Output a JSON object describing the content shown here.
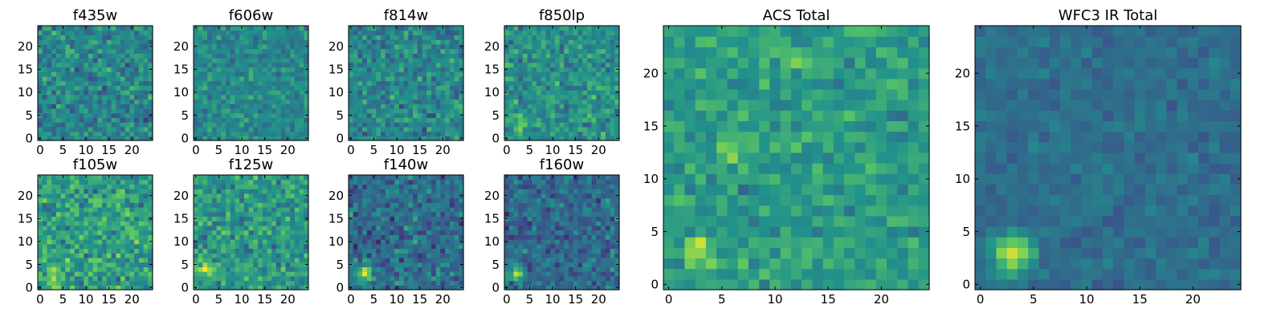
{
  "figure": {
    "colormap": "viridis",
    "colormap_stops": [
      "#440154",
      "#3b528b",
      "#21918c",
      "#5ec962",
      "#fde725"
    ]
  },
  "chart_data": [
    {
      "id": "f435w",
      "type": "heatmap",
      "title": "f435w",
      "grid_size": 25,
      "x_ticks": [
        "0",
        "5",
        "10",
        "15",
        "20"
      ],
      "y_ticks": [
        "0",
        "5",
        "10",
        "15",
        "20"
      ],
      "seed": 11,
      "base": 0.46,
      "noise": 0.13,
      "blobs": []
    },
    {
      "id": "f606w",
      "type": "heatmap",
      "title": "f606w",
      "grid_size": 25,
      "x_ticks": [
        "0",
        "5",
        "10",
        "15",
        "20"
      ],
      "y_ticks": [
        "0",
        "5",
        "10",
        "15",
        "20"
      ],
      "seed": 23,
      "base": 0.47,
      "noise": 0.1,
      "blobs": []
    },
    {
      "id": "f814w",
      "type": "heatmap",
      "title": "f814w",
      "grid_size": 25,
      "x_ticks": [
        "0",
        "5",
        "10",
        "15",
        "20"
      ],
      "y_ticks": [
        "0",
        "5",
        "10",
        "15",
        "20"
      ],
      "seed": 37,
      "base": 0.46,
      "noise": 0.13,
      "blobs": []
    },
    {
      "id": "f850lp",
      "type": "heatmap",
      "title": "f850lp",
      "grid_size": 25,
      "x_ticks": [
        "0",
        "5",
        "10",
        "15",
        "20"
      ],
      "y_ticks": [
        "0",
        "5",
        "10",
        "15",
        "20"
      ],
      "seed": 41,
      "base": 0.5,
      "noise": 0.13,
      "blobs": [
        {
          "x": 3,
          "y": 3,
          "amp": 0.3,
          "r": 1.0
        }
      ]
    },
    {
      "id": "f105w",
      "type": "heatmap",
      "title": "f105w",
      "grid_size": 25,
      "x_ticks": [
        "0",
        "5",
        "10",
        "15",
        "20"
      ],
      "y_ticks": [
        "0",
        "5",
        "10",
        "15",
        "20"
      ],
      "seed": 53,
      "base": 0.56,
      "noise": 0.15,
      "blobs": [
        {
          "x": 3,
          "y": 3,
          "amp": 0.25,
          "r": 1.5
        }
      ]
    },
    {
      "id": "f125w",
      "type": "heatmap",
      "title": "f125w",
      "grid_size": 25,
      "x_ticks": [
        "0",
        "5",
        "10",
        "15",
        "20"
      ],
      "y_ticks": [
        "0",
        "5",
        "10",
        "15",
        "20"
      ],
      "seed": 67,
      "base": 0.53,
      "noise": 0.14,
      "blobs": [
        {
          "x": 2,
          "y": 4,
          "amp": 0.3,
          "r": 1.5
        }
      ]
    },
    {
      "id": "f140w",
      "type": "heatmap",
      "title": "f140w",
      "grid_size": 25,
      "x_ticks": [
        "0",
        "5",
        "10",
        "15",
        "20"
      ],
      "y_ticks": [
        "0",
        "5",
        "10",
        "15",
        "20"
      ],
      "seed": 71,
      "base": 0.36,
      "noise": 0.13,
      "blobs": [
        {
          "x": 3,
          "y": 3,
          "amp": 0.45,
          "r": 1.2
        }
      ]
    },
    {
      "id": "f160w",
      "type": "heatmap",
      "title": "f160w",
      "grid_size": 25,
      "x_ticks": [
        "0",
        "5",
        "10",
        "15",
        "20"
      ],
      "y_ticks": [
        "0",
        "5",
        "10",
        "15",
        "20"
      ],
      "seed": 83,
      "base": 0.34,
      "noise": 0.12,
      "blobs": [
        {
          "x": 2,
          "y": 3,
          "amp": 0.55,
          "r": 1.0
        }
      ]
    },
    {
      "id": "acs-total",
      "type": "heatmap",
      "title": "ACS Total",
      "grid_size": 25,
      "x_ticks": [
        "0",
        "5",
        "10",
        "15",
        "20"
      ],
      "y_ticks": [
        "0",
        "5",
        "10",
        "15",
        "20"
      ],
      "seed": 97,
      "base": 0.55,
      "noise": 0.1,
      "blobs": [
        {
          "x": 3,
          "y": 3,
          "amp": 0.35,
          "r": 1.0
        },
        {
          "x": 6,
          "y": 13,
          "amp": 0.3,
          "r": 0.8
        },
        {
          "x": 12,
          "y": 21,
          "amp": 0.25,
          "r": 0.8
        }
      ]
    },
    {
      "id": "wfc3-ir-total",
      "type": "heatmap",
      "title": "WFC3 IR Total",
      "grid_size": 25,
      "x_ticks": [
        "0",
        "5",
        "10",
        "15",
        "20"
      ],
      "y_ticks": [
        "0",
        "5",
        "10",
        "15",
        "20"
      ],
      "seed": 101,
      "base": 0.36,
      "noise": 0.06,
      "blobs": [
        {
          "x": 3,
          "y": 3,
          "amp": 0.58,
          "r": 1.3
        }
      ]
    }
  ]
}
